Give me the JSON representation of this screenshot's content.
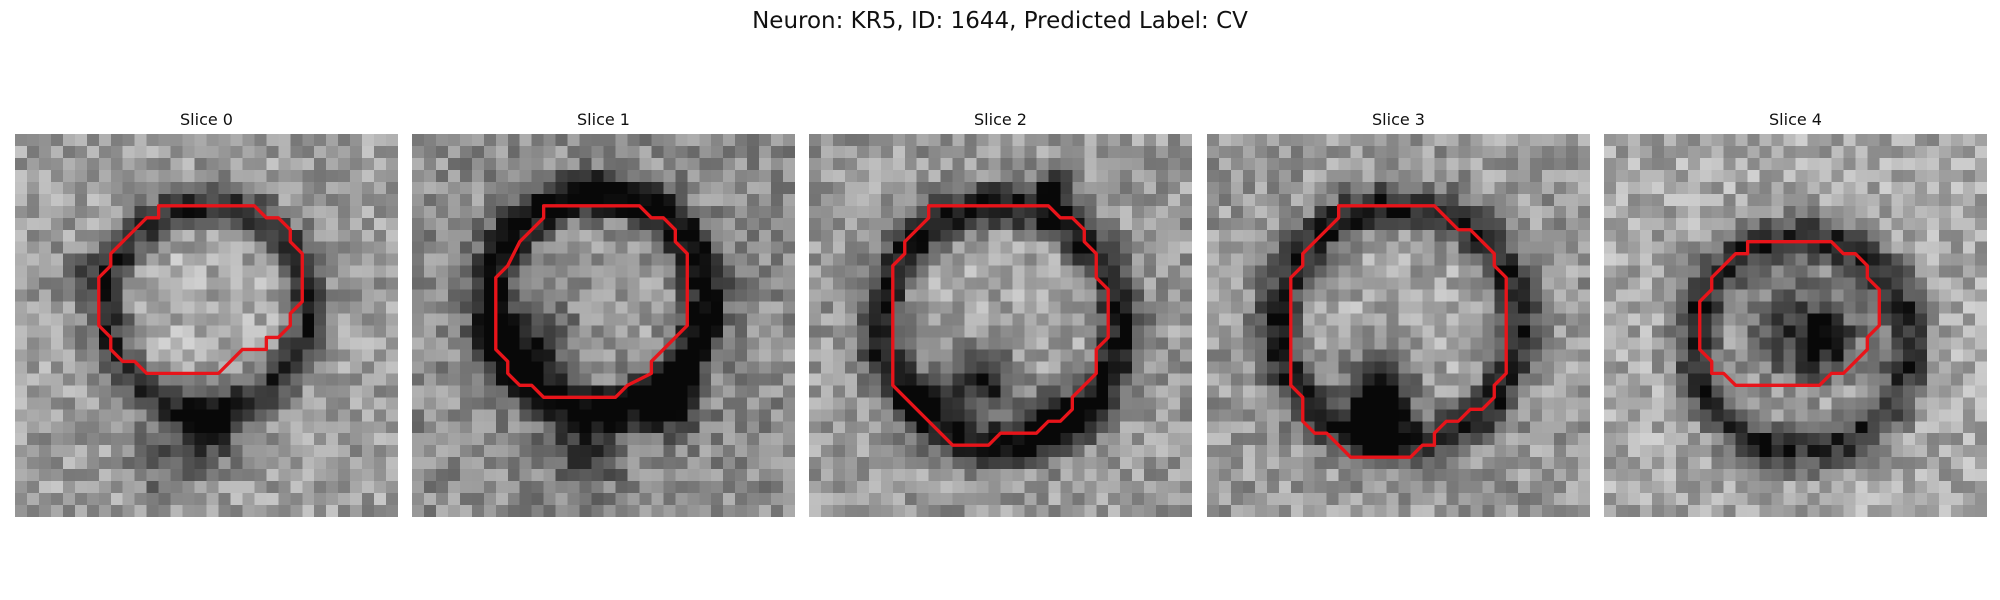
{
  "figure": {
    "title": "Neuron: KR5, ID: 1644, Predicted Label: CV"
  },
  "colors": {
    "contour": "#e8141a",
    "background": "#ffffff"
  },
  "panels": [
    {
      "title": "Slice 0"
    },
    {
      "title": "Slice 1"
    },
    {
      "title": "Slice 2"
    },
    {
      "title": "Slice 3"
    },
    {
      "title": "Slice 4"
    }
  ]
}
